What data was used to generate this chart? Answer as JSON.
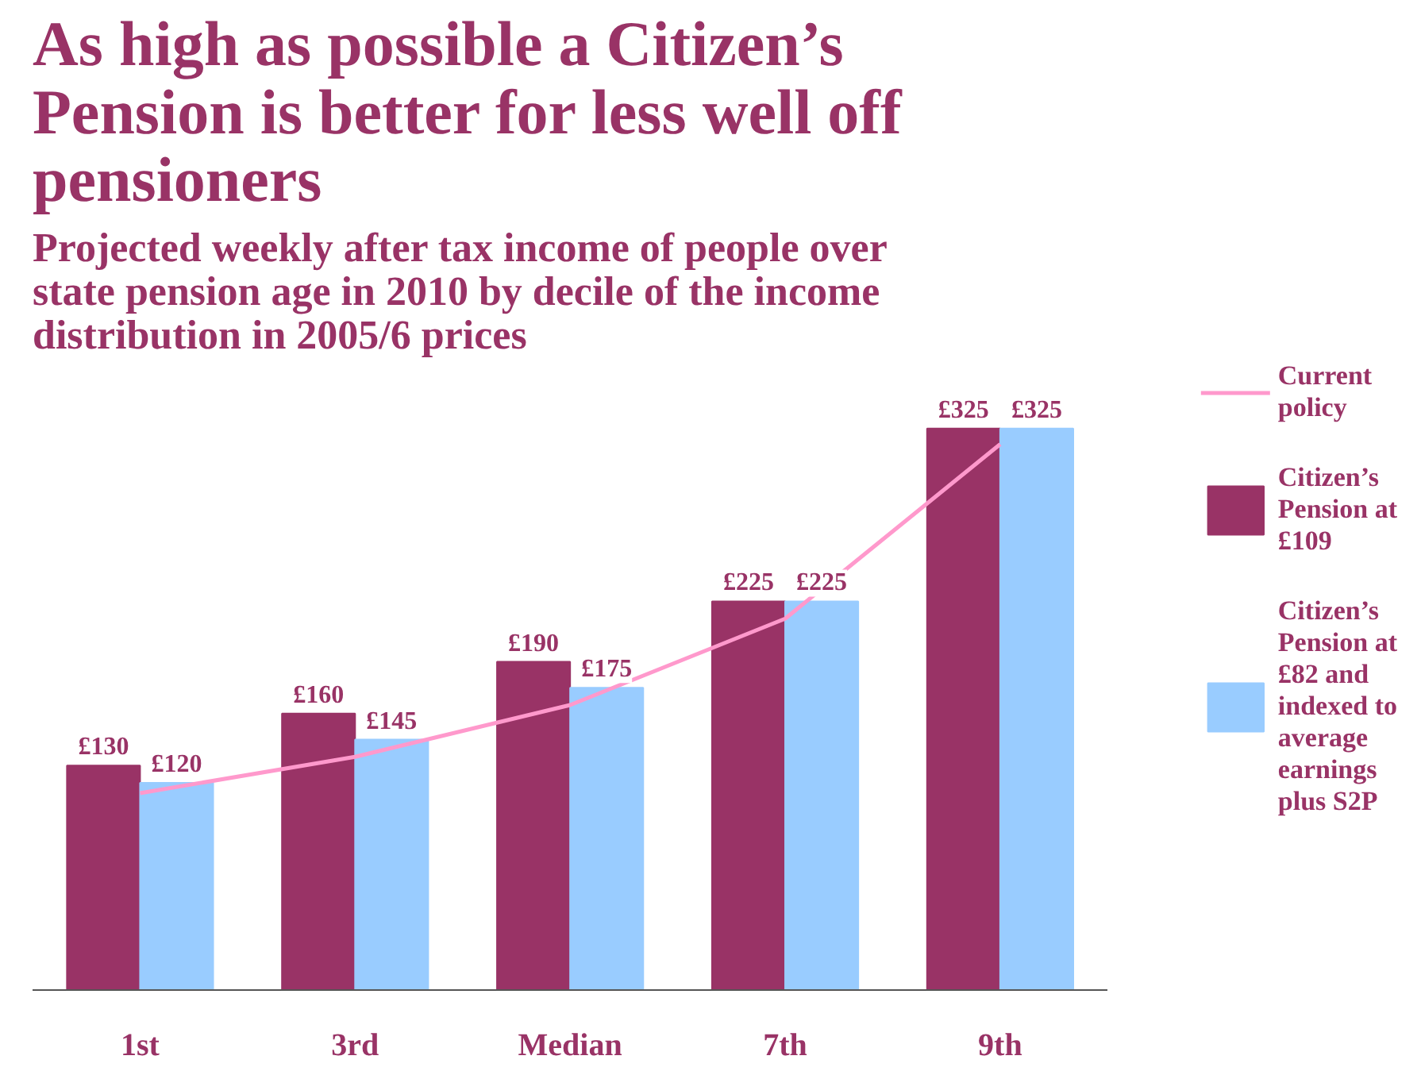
{
  "chart_data": {
    "type": "bar",
    "title": "As high as possible a Citizen’s Pension is better for less well off pensioners",
    "subtitle": "Projected weekly after tax income of people over state pension age in 2010 by decile of the income distribution in 2005/6 prices",
    "categories": [
      "1st",
      "3rd",
      "Median",
      "7th",
      "9th"
    ],
    "series": [
      {
        "name": "Current policy",
        "type": "line",
        "color": "#ff99cc",
        "values": [
          114,
          135,
          165,
          215,
          316
        ]
      },
      {
        "name": "Citizen’s Pension at £109",
        "color": "#993366",
        "values": [
          130,
          160,
          190,
          225,
          325
        ],
        "value_labels": [
          "£130",
          "£160",
          "£190",
          "£225",
          "£325"
        ]
      },
      {
        "name": "Citizen’s Pension at £82 and indexed to average earnings plus S2P",
        "color": "#99ccff",
        "values": [
          120,
          145,
          175,
          225,
          325
        ],
        "value_labels": [
          "£120",
          "£145",
          "£175",
          "£225",
          "£325"
        ]
      }
    ],
    "legend": "right",
    "grid": false,
    "tick_labels": "x"
  }
}
